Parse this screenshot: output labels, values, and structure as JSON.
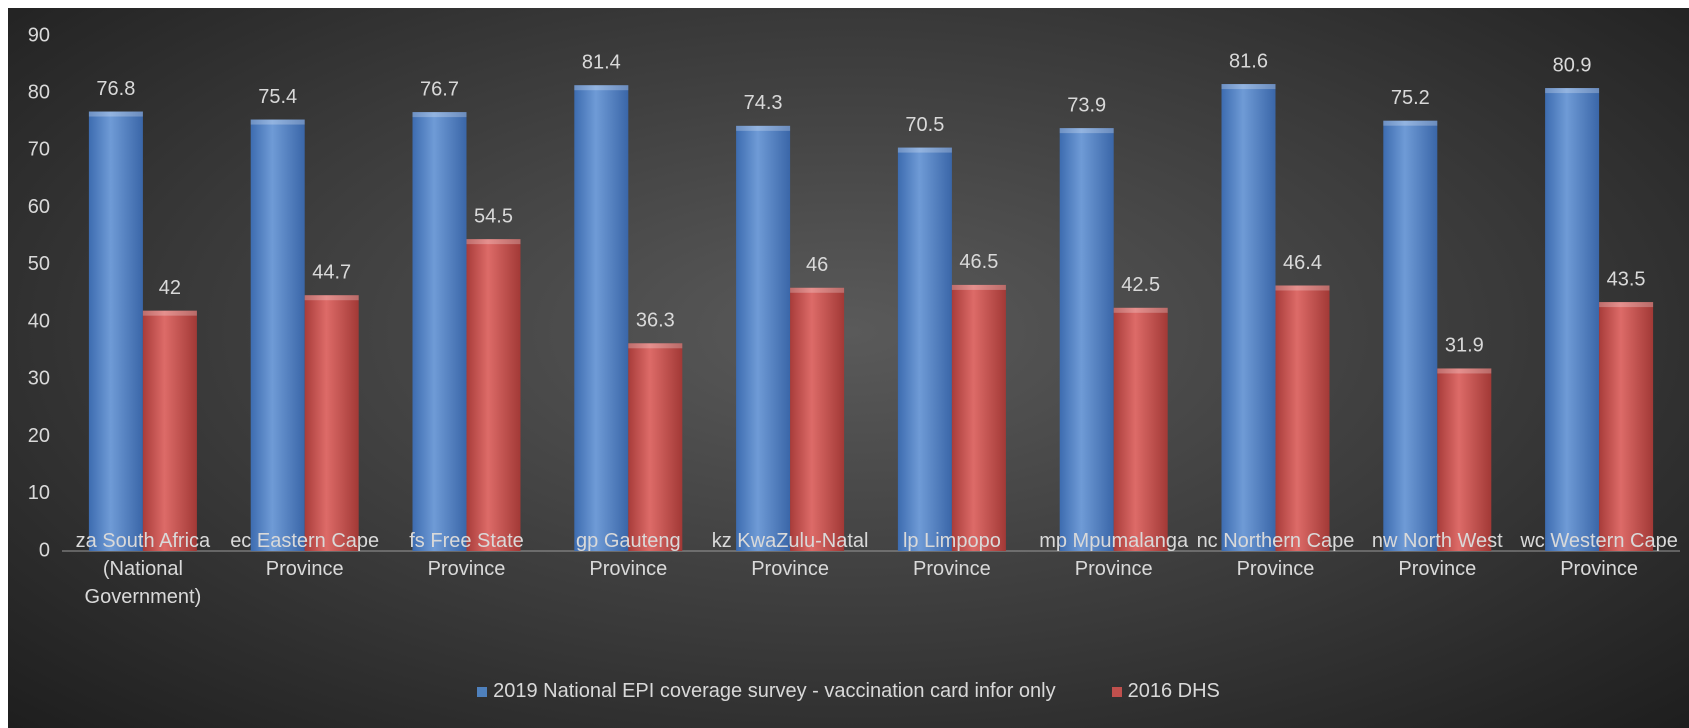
{
  "chart_data": {
    "type": "bar",
    "categories": [
      "za South Africa (National Government)",
      "ec Eastern Cape Province",
      "fs Free State Province",
      "gp Gauteng Province",
      "kz KwaZulu-Natal Province",
      "lp Limpopo Province",
      "mp Mpumalanga Province",
      "nc Northern Cape Province",
      "nw North West Province",
      "wc Western Cape Province"
    ],
    "series": [
      {
        "name": "2019 National EPI coverage survey - vaccination card infor only",
        "color": "#4f81bd",
        "values": [
          76.8,
          75.4,
          76.7,
          81.4,
          74.3,
          70.5,
          73.9,
          81.6,
          75.2,
          80.9
        ]
      },
      {
        "name": "2016 DHS",
        "color": "#c0504d",
        "values": [
          42,
          44.7,
          54.5,
          36.3,
          46,
          46.5,
          42.5,
          46.4,
          31.9,
          43.5
        ]
      }
    ],
    "ylim": [
      0,
      90
    ],
    "yticks": [
      0,
      10,
      20,
      30,
      40,
      50,
      60,
      70,
      80,
      90
    ],
    "grid": false,
    "legend": "bottom"
  }
}
